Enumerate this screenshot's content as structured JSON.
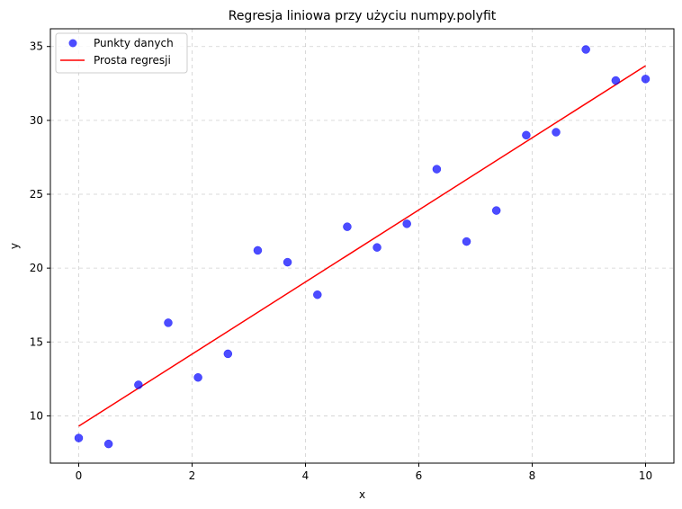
{
  "chart_data": {
    "type": "scatter",
    "title": "Regresja liniowa przy użyciu numpy.polyfit",
    "xlabel": "x",
    "ylabel": "y",
    "xlim": [
      -0.5,
      10.5
    ],
    "ylim": [
      6.8,
      36.2
    ],
    "xticks": [
      0,
      2,
      4,
      6,
      8,
      10
    ],
    "yticks": [
      10,
      15,
      20,
      25,
      30,
      35
    ],
    "xtick_labels": [
      "0",
      "2",
      "4",
      "6",
      "8",
      "10"
    ],
    "ytick_labels": [
      "10",
      "15",
      "20",
      "25",
      "30",
      "35"
    ],
    "grid": true,
    "legend_position": "top-left",
    "series": [
      {
        "name": "Punkty danych",
        "kind": "scatter",
        "color": "#0000ff",
        "x": [
          0.0,
          0.526,
          1.053,
          1.579,
          2.105,
          2.632,
          3.158,
          3.684,
          4.211,
          4.737,
          5.263,
          5.789,
          6.316,
          6.842,
          7.368,
          7.895,
          8.421,
          8.947,
          9.474,
          10.0
        ],
        "y": [
          8.5,
          8.1,
          12.1,
          16.3,
          12.6,
          14.2,
          21.2,
          20.4,
          18.2,
          22.8,
          21.4,
          23.0,
          26.7,
          21.8,
          23.9,
          29.0,
          29.2,
          34.8,
          32.7,
          32.8
        ]
      },
      {
        "name": "Prosta regresji",
        "kind": "line",
        "color": "#ff0000",
        "x": [
          0.0,
          10.0
        ],
        "y": [
          9.3,
          33.7
        ]
      }
    ]
  }
}
